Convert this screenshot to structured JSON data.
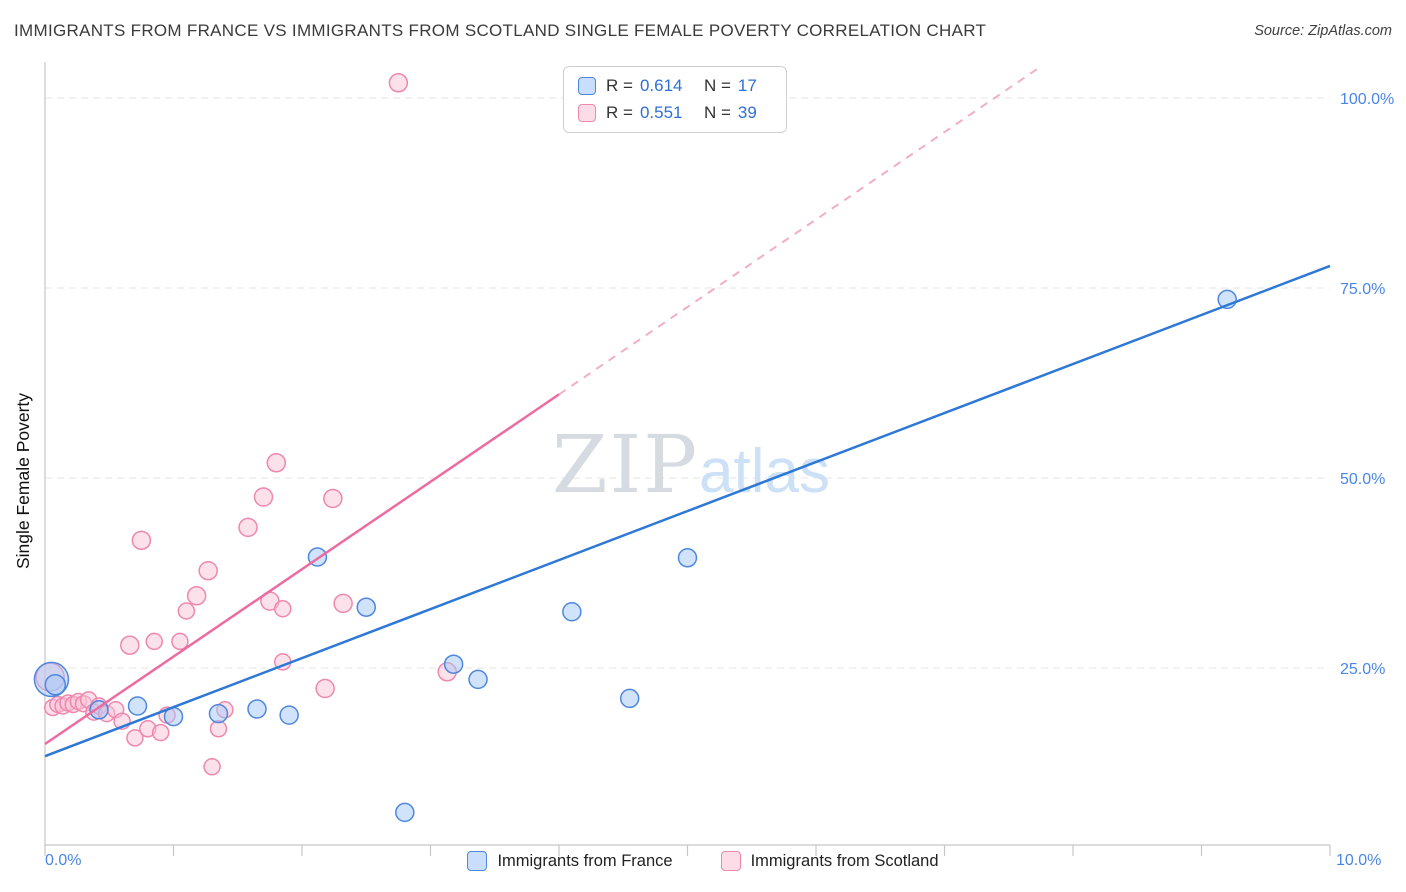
{
  "header": {
    "title": "IMMIGRANTS FROM FRANCE VS IMMIGRANTS FROM SCOTLAND SINGLE FEMALE POVERTY CORRELATION CHART",
    "source": "Source: ZipAtlas.com"
  },
  "legend_box": {
    "rows": [
      {
        "r_label": "R =",
        "r_value": "0.614",
        "n_label": "N =",
        "n_value": "17"
      },
      {
        "r_label": "R =",
        "r_value": "0.551",
        "n_label": "N =",
        "n_value": "39"
      }
    ]
  },
  "watermark": {
    "zip": "ZIP",
    "atlas": "atlas"
  },
  "axes": {
    "x_min_label": "0.0%",
    "x_max_label": "10.0%",
    "y_tick_labels": [
      "25.0%",
      "50.0%",
      "75.0%",
      "100.0%"
    ],
    "label_color": "#4a86e8"
  },
  "bottom_legend": [
    {
      "label": "Immigrants from France"
    },
    {
      "label": "Immigrants from Scotland"
    }
  ],
  "chart_data": {
    "type": "scatter",
    "title": "IMMIGRANTS FROM FRANCE VS IMMIGRANTS FROM SCOTLAND SINGLE FEMALE POVERTY CORRELATION CHART",
    "ylabel": "Single Female Poverty",
    "xlabel": "",
    "x_range": [
      0,
      10
    ],
    "y_range": [
      0,
      105
    ],
    "y_gridlines": [
      25,
      50,
      75,
      100
    ],
    "grid": "horizontal-dashed",
    "legend_position": "bottom-center",
    "series": [
      {
        "name": "Immigrants from France",
        "R": 0.614,
        "N": 17,
        "fill": "rgba(164,200,248,0.5)",
        "stroke": "#4f87dd",
        "points": [
          [
            0.05,
            23.5,
            17
          ],
          [
            0.08,
            22.8,
            10
          ],
          [
            0.42,
            19.5,
            9
          ],
          [
            0.72,
            20.0,
            9
          ],
          [
            1.0,
            18.6,
            9
          ],
          [
            1.35,
            19.0,
            9
          ],
          [
            1.65,
            19.6,
            9
          ],
          [
            1.9,
            18.8,
            9
          ],
          [
            2.12,
            39.6,
            9
          ],
          [
            2.5,
            33.0,
            9
          ],
          [
            2.8,
            6.0,
            9
          ],
          [
            3.18,
            25.5,
            9
          ],
          [
            3.37,
            23.5,
            9
          ],
          [
            4.1,
            32.4,
            9
          ],
          [
            4.55,
            21.0,
            9
          ],
          [
            5.0,
            39.5,
            9
          ],
          [
            9.2,
            73.5,
            9
          ]
        ],
        "trend": {
          "x1": 0,
          "y1": 13.4,
          "x2": 10,
          "y2": 77.9,
          "color": "#2e78d6"
        }
      },
      {
        "name": "Immigrants from Scotland",
        "R": 0.551,
        "N": 39,
        "fill": "rgba(249,196,215,0.5)",
        "stroke": "#ef87ae",
        "points": [
          [
            0.04,
            23.8,
            14
          ],
          [
            0.06,
            19.8,
            8
          ],
          [
            0.1,
            20.2,
            8
          ],
          [
            0.14,
            20.0,
            8
          ],
          [
            0.18,
            20.4,
            8
          ],
          [
            0.22,
            20.2,
            8
          ],
          [
            0.26,
            20.6,
            8
          ],
          [
            0.3,
            20.3,
            8
          ],
          [
            0.34,
            20.8,
            8
          ],
          [
            0.38,
            19.2,
            8
          ],
          [
            0.42,
            20.0,
            8
          ],
          [
            0.48,
            19.0,
            8
          ],
          [
            0.55,
            19.5,
            8
          ],
          [
            0.6,
            18.0,
            8
          ],
          [
            0.66,
            28.0,
            9
          ],
          [
            0.7,
            15.8,
            8
          ],
          [
            0.75,
            41.8,
            9
          ],
          [
            0.8,
            17.0,
            8
          ],
          [
            0.85,
            28.5,
            8
          ],
          [
            0.9,
            16.5,
            8
          ],
          [
            0.95,
            18.8,
            8
          ],
          [
            1.05,
            28.5,
            8
          ],
          [
            1.1,
            32.5,
            8
          ],
          [
            1.18,
            34.5,
            9
          ],
          [
            1.27,
            37.8,
            9
          ],
          [
            1.3,
            12.0,
            8
          ],
          [
            1.35,
            17.0,
            8
          ],
          [
            1.4,
            19.5,
            8
          ],
          [
            1.58,
            43.5,
            9
          ],
          [
            1.7,
            47.5,
            9
          ],
          [
            1.75,
            33.8,
            9
          ],
          [
            1.8,
            52.0,
            9
          ],
          [
            1.85,
            32.8,
            8
          ],
          [
            1.85,
            25.8,
            8
          ],
          [
            2.18,
            22.3,
            9
          ],
          [
            2.24,
            47.3,
            9
          ],
          [
            2.32,
            33.5,
            9
          ],
          [
            2.75,
            102.0,
            9
          ],
          [
            3.13,
            24.5,
            9
          ]
        ],
        "trend": {
          "x1": 0,
          "y1": 15.0,
          "x2": 4.0,
          "y2": 61.0,
          "color": "#ec6ba0"
        },
        "trend_ext": {
          "x1": 4.0,
          "y1": 61.0,
          "x2": 7.72,
          "y2": 103.8,
          "color": "#f2aec8"
        }
      }
    ]
  }
}
